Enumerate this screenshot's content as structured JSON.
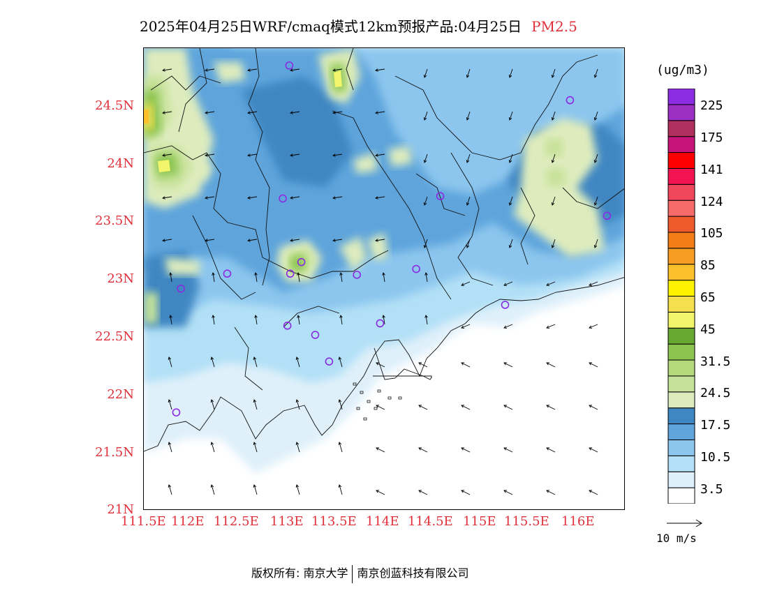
{
  "title": {
    "main": "2025年04月25日WRF/cmaq模式12km预报产品:04月25日",
    "pollutant": "PM2.5"
  },
  "axes": {
    "lat_labels": [
      "24.5N",
      "24N",
      "23.5N",
      "23N",
      "22.5N",
      "22N",
      "21.5N",
      "21N"
    ],
    "lat_values": [
      24.5,
      24.0,
      23.5,
      23.0,
      22.5,
      22.0,
      21.5,
      21.0
    ],
    "lon_labels": [
      "111.5E",
      "112E",
      "112.5E",
      "113E",
      "113.5E",
      "114E",
      "114.5E",
      "115E",
      "115.5E",
      "116E"
    ],
    "lon_values": [
      111.5,
      112.0,
      112.5,
      113.0,
      113.5,
      114.0,
      114.5,
      115.0,
      115.5,
      116.0
    ],
    "lat_range": [
      21.0,
      25.0
    ],
    "lon_range": [
      111.5,
      116.7
    ]
  },
  "legend": {
    "unit": "(ug/m3)",
    "labels": [
      "225",
      "175",
      "141",
      "124",
      "105",
      "85",
      "65",
      "45",
      "31.5",
      "24.5",
      "17.5",
      "10.5",
      "3.5"
    ],
    "colors_bottom_to_top": [
      "#ffffff",
      "#dff0fa",
      "#b2e0f6",
      "#8cc6ee",
      "#5fa5dc",
      "#3f87c2",
      "#deecbd",
      "#c6e29a",
      "#b4d97c",
      "#8cc44f",
      "#66a832",
      "#f0f56a",
      "#f6df4c",
      "#fff200",
      "#fbc02c",
      "#f79d22",
      "#f47d16",
      "#ee5a2c",
      "#f76b6b",
      "#f0465c",
      "#f21451",
      "#ff0000",
      "#c8147a",
      "#b0305f",
      "#9b2fc3",
      "#8b2be2"
    ]
  },
  "wind_reference": {
    "label": "10 m/s"
  },
  "stations_lonlat": [
    [
      113.07,
      24.85
    ],
    [
      116.1,
      24.55
    ],
    [
      113.0,
      23.7
    ],
    [
      114.7,
      23.72
    ],
    [
      116.5,
      23.55
    ],
    [
      113.2,
      23.15
    ],
    [
      113.08,
      23.05
    ],
    [
      112.4,
      23.05
    ],
    [
      111.9,
      22.92
    ],
    [
      113.8,
      23.04
    ],
    [
      114.44,
      23.09
    ],
    [
      115.4,
      22.78
    ],
    [
      113.05,
      22.6
    ],
    [
      113.35,
      22.52
    ],
    [
      114.05,
      22.62
    ],
    [
      113.5,
      22.29
    ],
    [
      111.85,
      21.85
    ]
  ],
  "footer": {
    "copyright": "版权所有: 南京大学",
    "company": "南京创蓝科技有限公司"
  }
}
